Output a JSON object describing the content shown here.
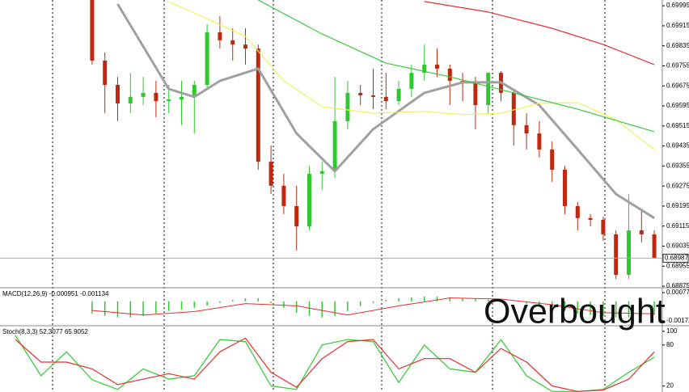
{
  "chart_data": [
    {
      "type": "candlestick",
      "ylim": [
        0.68872,
        0.70018
      ],
      "yticks": [
        0.69995,
        0.69915,
        0.69835,
        0.69755,
        0.69675,
        0.69595,
        0.69515,
        0.69435,
        0.69355,
        0.69275,
        0.69195,
        0.69115,
        0.69035,
        0.68955,
        0.68875
      ],
      "up_color": "#2fc82f",
      "down_color": "#c0280f",
      "open": [
        0.70018,
        0.69776,
        0.69679,
        0.69605,
        0.69631,
        0.69647,
        0.69614,
        0.69621,
        0.69631,
        0.69679,
        0.69889,
        0.69857,
        0.6984,
        0.69824,
        0.69372,
        0.69276,
        0.69195,
        0.69114,
        0.69324,
        0.69334,
        0.69534,
        0.69647,
        0.69637,
        0.69631,
        0.69614,
        0.69663,
        0.69727,
        0.6976,
        0.69744,
        0.69695,
        0.69686,
        0.69598,
        0.69727,
        0.69647,
        0.69518,
        0.69485,
        0.69421,
        0.6934,
        0.69195,
        0.69147,
        0.6914,
        0.69082,
        0.6892,
        0.69098,
        0.69082
      ],
      "high": [
        0.70018,
        0.69808,
        0.69711,
        0.69727,
        0.69711,
        0.69695,
        0.69679,
        0.69695,
        0.69695,
        0.69921,
        0.69953,
        0.69905,
        0.69905,
        0.6984,
        0.69437,
        0.69324,
        0.69276,
        0.69356,
        0.69372,
        0.69711,
        0.69695,
        0.69679,
        0.69744,
        0.69727,
        0.69695,
        0.6976,
        0.6984,
        0.69824,
        0.6976,
        0.69727,
        0.69711,
        0.69727,
        0.69734,
        0.69663,
        0.69566,
        0.69534,
        0.69453,
        0.69356,
        0.69211,
        0.69163,
        0.69153,
        0.69098,
        0.69243,
        0.69179,
        0.69098
      ],
      "low": [
        0.6976,
        0.69566,
        0.69534,
        0.69566,
        0.69598,
        0.6955,
        0.69566,
        0.69518,
        0.69485,
        0.69663,
        0.69824,
        0.69776,
        0.6976,
        0.6934,
        0.69243,
        0.69163,
        0.69018,
        0.69098,
        0.6926,
        0.69308,
        0.69502,
        0.69598,
        0.69582,
        0.69582,
        0.69598,
        0.69631,
        0.69695,
        0.69711,
        0.69598,
        0.69614,
        0.69502,
        0.69566,
        0.69614,
        0.69437,
        0.69421,
        0.69389,
        0.69292,
        0.69163,
        0.69098,
        0.69114,
        0.69056,
        0.68904,
        0.68904,
        0.6905,
        0.68985
      ],
      "close": [
        0.69776,
        0.69679,
        0.69605,
        0.69631,
        0.69647,
        0.69614,
        0.69621,
        0.69631,
        0.69679,
        0.69889,
        0.69857,
        0.6984,
        0.69824,
        0.69372,
        0.69276,
        0.69195,
        0.69114,
        0.69324,
        0.69334,
        0.69534,
        0.69647,
        0.69637,
        0.69631,
        0.69614,
        0.69663,
        0.69727,
        0.6976,
        0.69744,
        0.69695,
        0.69686,
        0.69598,
        0.69727,
        0.69647,
        0.69518,
        0.69485,
        0.69421,
        0.6934,
        0.69195,
        0.69147,
        0.6914,
        0.69082,
        0.6892,
        0.69098,
        0.69082,
        0.68988
      ],
      "lines": [
        {
          "color": "#a0a0a0",
          "x": [
            2,
            6,
            8,
            10,
            13,
            16,
            19,
            22,
            26,
            29,
            32,
            35,
            38,
            41,
            44
          ],
          "values": [
            0.70002,
            0.69663,
            0.69631,
            0.69695,
            0.69744,
            0.69485,
            0.69334,
            0.69502,
            0.69647,
            0.69689,
            0.69689,
            0.69598,
            0.69421,
            0.69243,
            0.69147
          ]
        },
        {
          "color": "#f0f060",
          "x": [
            6,
            12,
            15,
            18,
            22,
            26,
            29,
            32,
            35,
            38,
            41,
            44
          ],
          "values": [
            0.70012,
            0.69873,
            0.69695,
            0.69592,
            0.69566,
            0.69573,
            0.6956,
            0.69566,
            0.69605,
            0.69608,
            0.6954,
            0.69421
          ]
        },
        {
          "color": "#3cc83c",
          "x": [
            13,
            18,
            23,
            28,
            33,
            38,
            44
          ],
          "values": [
            0.70018,
            0.69882,
            0.69766,
            0.69711,
            0.69647,
            0.69582,
            0.69492
          ]
        },
        {
          "color": "#e03030",
          "x": [
            26,
            31,
            36,
            40,
            44
          ],
          "values": [
            0.70012,
            0.6997,
            0.69905,
            0.6984,
            0.6976
          ]
        }
      ],
      "last_price": 0.68987
    },
    {
      "type": "macd",
      "title": "MACD(12,26,9) -0.000951 -0.001134",
      "ylim": [
        -0.00208,
        0.00113
      ],
      "yticks": [
        0.00077,
        -0.001723
      ],
      "histogram": {
        "color": "#2fc82f",
        "values": [
          -0.00107,
          -0.00128,
          -0.00142,
          -0.00142,
          -0.00128,
          -0.00107,
          -0.00085,
          -0.00071,
          -0.00057,
          -0.00036,
          -0.00014,
          0.00014,
          0.00028,
          0.00028,
          -0.00014,
          -0.00057,
          -0.001,
          -0.00128,
          -0.00142,
          -0.00128,
          -0.00085,
          -0.00043,
          -0.00014,
          0.00014,
          0.00028,
          0.00036,
          0.00043,
          0.00043,
          0.00036,
          0.00028,
          0.00021,
          0.00014,
          0.00014,
          0,
          -0.00021,
          -0.00043,
          -0.00064,
          -0.00085,
          -0.00107,
          -0.00121,
          -0.00128,
          -0.00142,
          -0.00142,
          -0.00128,
          -0.00121
        ]
      },
      "signal": {
        "color": "#e03030",
        "x": [
          0,
          4,
          8,
          12,
          16,
          20,
          24,
          28,
          32,
          36,
          40,
          44
        ],
        "values": [
          -0.0008,
          -0.0012,
          -0.0009,
          -0.0002,
          -0.0004,
          -0.0012,
          -0.0004,
          0.0003,
          0.0002,
          -0.0003,
          -0.001,
          -0.0011
        ]
      }
    },
    {
      "type": "stoch",
      "title": "Stoch(8,3,3) 52.3077 65.9052",
      "ylim": [
        10,
        107
      ],
      "yticks": [
        100,
        80,
        20
      ],
      "lines": [
        {
          "color": "#2fc82f",
          "x": [
            -6,
            -4,
            -2,
            0,
            2,
            4,
            6,
            8,
            10,
            12,
            14,
            16,
            18,
            20,
            22,
            24,
            26,
            28,
            30,
            32,
            34,
            36,
            38,
            40,
            42,
            44
          ],
          "values": [
            94,
            35,
            70,
            29,
            15,
            45,
            30,
            35,
            88,
            85,
            20,
            15,
            80,
            88,
            85,
            25,
            80,
            45,
            40,
            88,
            35,
            12,
            12,
            15,
            40,
            62
          ]
        },
        {
          "color": "#e03030",
          "x": [
            -6,
            -4,
            -2,
            0,
            2,
            4,
            6,
            8,
            10,
            12,
            14,
            16,
            18,
            20,
            22,
            24,
            26,
            28,
            30,
            32,
            34,
            36,
            38,
            40,
            42,
            44
          ],
          "values": [
            88,
            55,
            55,
            45,
            22,
            30,
            38,
            30,
            70,
            90,
            40,
            18,
            60,
            85,
            88,
            45,
            60,
            60,
            40,
            75,
            55,
            20,
            12,
            14,
            30,
            70
          ]
        }
      ]
    }
  ],
  "annotation": "Overbought"
}
